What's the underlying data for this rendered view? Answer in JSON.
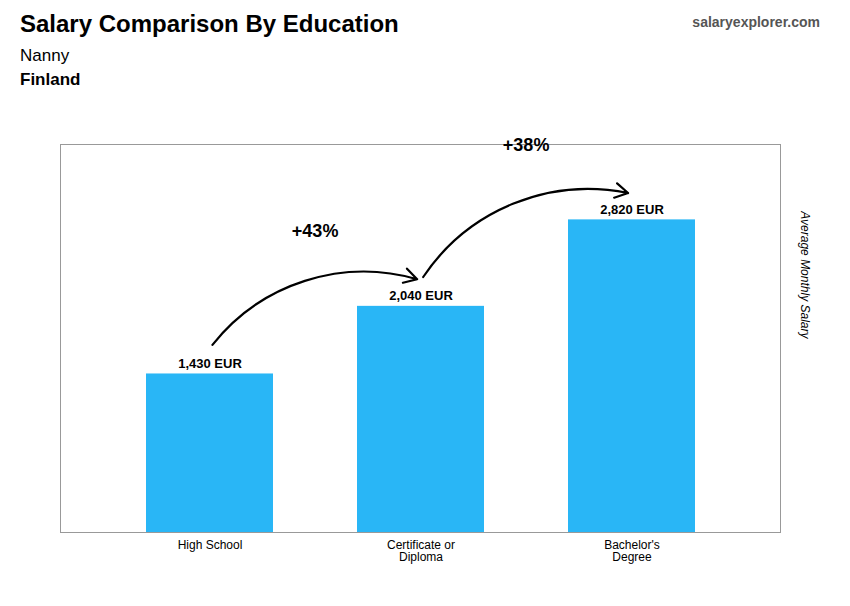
{
  "chart_data": {
    "type": "bar",
    "title": "Salary Comparison By Education",
    "subtitle": [
      "Nanny",
      "Finland"
    ],
    "watermark": "salaryexplorer.com",
    "categories": [
      "High School",
      "Certificate or\nDiploma",
      "Bachelor's\nDegree"
    ],
    "values": [
      1430,
      2040,
      2820
    ],
    "value_labels": [
      "1,430 EUR",
      "2,040 EUR",
      "2,820 EUR"
    ],
    "data_labels": true,
    "color": "#29b6f6",
    "ylabel": "Average Monthly Salary",
    "ylim": [
      0,
      3500
    ],
    "tick_labels": "x",
    "grid": false,
    "annotations": [
      {
        "text": "+43%",
        "from": "High School",
        "to": "Certificate or\nDiploma"
      },
      {
        "text": "+38%",
        "from": "Certificate or\nDiploma",
        "to": "Bachelor's\nDegree"
      }
    ]
  }
}
